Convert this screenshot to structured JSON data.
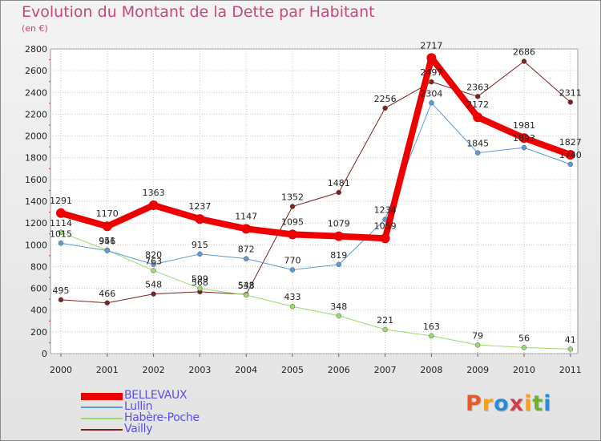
{
  "title": "Evolution du Montant de la Dette par Habitant",
  "subtitle": "(en €)",
  "logo": {
    "text": "Proxiti",
    "colors": [
      "#e85a2a",
      "#f2a21b",
      "#2a8bd6",
      "#d93a4a",
      "#f2a21b",
      "#6ab42d",
      "#2a8bd6"
    ]
  },
  "chart_data": {
    "type": "line",
    "title": "Evolution du Montant de la Dette par Habitant",
    "ylabel": "(en €)",
    "xlabel": "",
    "x": [
      "2000",
      "2001",
      "2002",
      "2003",
      "2004",
      "2005",
      "2006",
      "2007",
      "2008",
      "2009",
      "2010",
      "2011"
    ],
    "ylim": [
      0,
      2800
    ],
    "yticks": [
      0,
      200,
      400,
      600,
      800,
      1000,
      1200,
      1400,
      1600,
      1800,
      2000,
      2200,
      2400,
      2600,
      2800
    ],
    "grid": true,
    "legend": "bottom-left",
    "series": [
      {
        "name": "BELLEVAUX",
        "color": "#ee0000",
        "width": 8,
        "marker": 6,
        "values": [
          1291,
          1170,
          1363,
          1237,
          1147,
          1095,
          1079,
          1059,
          2717,
          2172,
          1981,
          1827
        ]
      },
      {
        "name": "Lullin",
        "color": "#5b9bd5",
        "width": 1,
        "marker": 3,
        "values": [
          1015,
          946,
          820,
          915,
          872,
          770,
          819,
          1234,
          2304,
          1845,
          1893,
          1740
        ]
      },
      {
        "name": "Habère-Poche",
        "color": "#99dd66",
        "width": 1,
        "marker": 3,
        "values": [
          1114,
          951,
          763,
          599,
          538,
          433,
          348,
          221,
          163,
          79,
          56,
          41
        ]
      },
      {
        "name": "Vailly",
        "color": "#7a2222",
        "width": 1,
        "marker": 3,
        "values": [
          495,
          466,
          548,
          568,
          543,
          1352,
          1481,
          2256,
          2497,
          2363,
          2686,
          2311
        ]
      }
    ]
  }
}
